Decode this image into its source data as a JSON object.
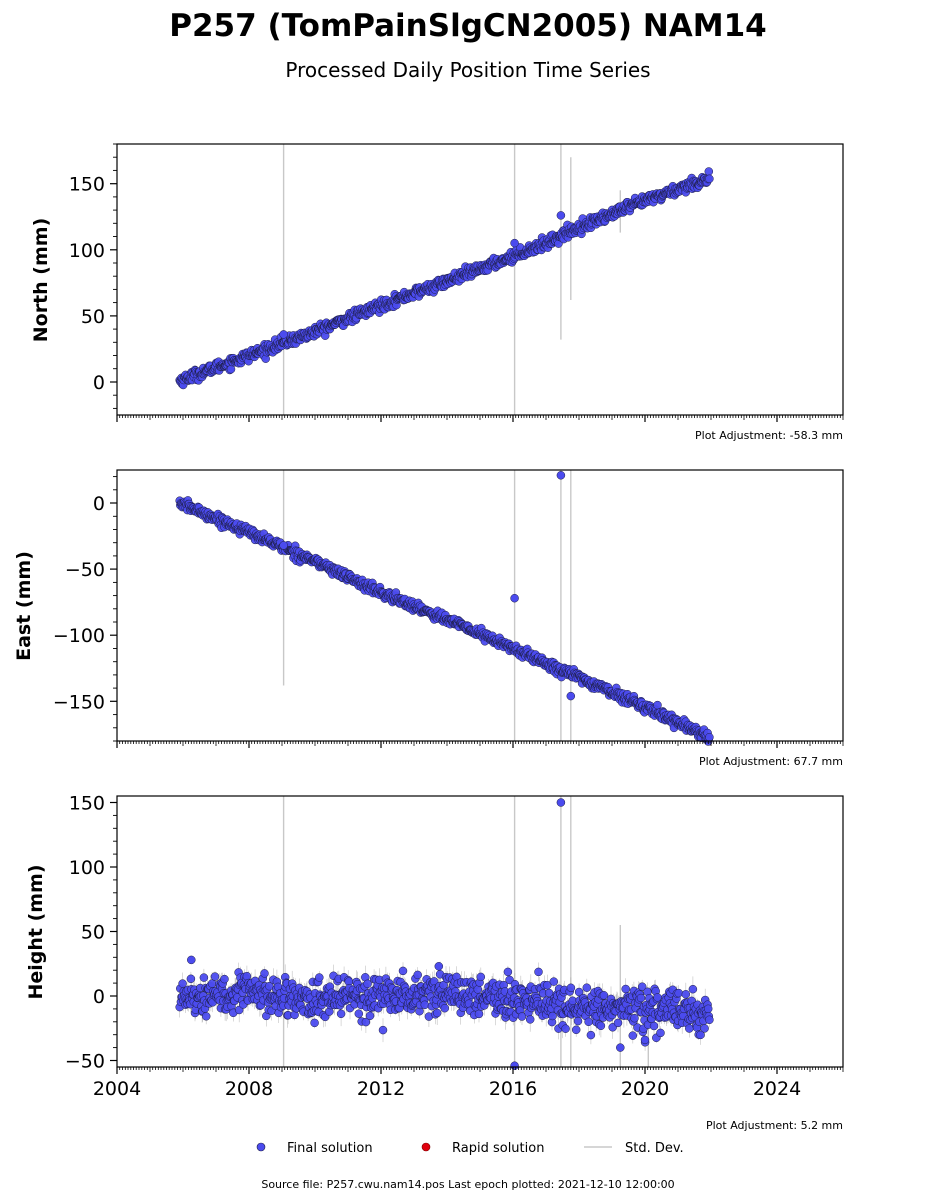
{
  "header": {
    "title": "P257 (TomPainSlgCN2005) NAM14",
    "subtitle": "Processed Daily Position Time Series"
  },
  "footer": {
    "source": "Source file: P257.cwu.nam14.pos  Last epoch plotted: 2021-12-10 12:00:00"
  },
  "legend": {
    "final": "Final solution",
    "rapid": "Rapid solution",
    "stddev": "Std. Dev."
  },
  "colors": {
    "final": "#4b4bee",
    "final_edge": "#1c1c40",
    "rapid": "#e0000e",
    "stddev": "#c8c8c8",
    "axis": "#000000"
  },
  "chart_data": [
    {
      "type": "scatter",
      "panel": "north",
      "ylabel": "North (mm)",
      "adjustment": "Plot Adjustment: -58.3 mm",
      "xlim": [
        2004.0,
        2026.0
      ],
      "ylim": [
        -25,
        180
      ],
      "yticks": [
        0,
        50,
        100,
        150
      ],
      "xticks": [
        2004,
        2008,
        2012,
        2016,
        2020,
        2024
      ],
      "show_xtick_labels": false,
      "trend": [
        [
          2005.9,
          1
        ],
        [
          2008.0,
          20
        ],
        [
          2010.0,
          38
        ],
        [
          2012.0,
          58
        ],
        [
          2014.0,
          76
        ],
        [
          2016.0,
          95
        ],
        [
          2017.0,
          105
        ],
        [
          2018.0,
          117
        ],
        [
          2019.0,
          127
        ],
        [
          2020.0,
          137
        ],
        [
          2021.0,
          146
        ],
        [
          2021.95,
          154
        ]
      ],
      "noise": 2.0,
      "outliers": [
        [
          2009.05,
          36
        ],
        [
          2016.05,
          105
        ],
        [
          2017.45,
          126
        ]
      ],
      "stddev_bars": [
        [
          2009.05,
          -25,
          180
        ],
        [
          2016.05,
          -25,
          180
        ],
        [
          2017.45,
          32,
          180
        ],
        [
          2017.75,
          62,
          170
        ],
        [
          2019.25,
          113,
          145
        ]
      ]
    },
    {
      "type": "scatter",
      "panel": "east",
      "ylabel": "East (mm)",
      "adjustment": "Plot Adjustment: 67.7 mm",
      "xlim": [
        2004.0,
        2026.0
      ],
      "ylim": [
        -180,
        25
      ],
      "yticks": [
        -150,
        -100,
        -50,
        0
      ],
      "xticks": [
        2004,
        2008,
        2012,
        2016,
        2020,
        2024
      ],
      "show_xtick_labels": false,
      "trend": [
        [
          2005.9,
          0
        ],
        [
          2008.0,
          -22
        ],
        [
          2010.0,
          -44
        ],
        [
          2012.0,
          -68
        ],
        [
          2014.0,
          -88
        ],
        [
          2016.0,
          -110
        ],
        [
          2018.0,
          -132
        ],
        [
          2020.0,
          -154
        ],
        [
          2021.95,
          -177
        ]
      ],
      "noise": 1.8,
      "outliers": [
        [
          2009.05,
          -32
        ],
        [
          2016.05,
          -72
        ],
        [
          2017.45,
          21
        ],
        [
          2017.75,
          -146
        ]
      ],
      "stddev_bars": [
        [
          2009.05,
          -138,
          25
        ],
        [
          2016.05,
          -180,
          25
        ],
        [
          2017.45,
          -180,
          25
        ],
        [
          2017.75,
          -180,
          25
        ]
      ]
    },
    {
      "type": "scatter",
      "panel": "height",
      "ylabel": "Height (mm)",
      "adjustment": "Plot Adjustment: 5.2 mm",
      "xlim": [
        2004.0,
        2026.0
      ],
      "ylim": [
        -55,
        155
      ],
      "yticks": [
        -50,
        0,
        50,
        100,
        150
      ],
      "xticks": [
        2004,
        2008,
        2012,
        2016,
        2020,
        2024
      ],
      "xticklabels": [
        "2004",
        "2008",
        "2012",
        "2016",
        "2020",
        "2024"
      ],
      "show_xtick_labels": true,
      "trend": [
        [
          2005.9,
          0
        ],
        [
          2008.0,
          2
        ],
        [
          2010.0,
          -2
        ],
        [
          2012.0,
          0
        ],
        [
          2014.0,
          2
        ],
        [
          2016.0,
          -3
        ],
        [
          2018.0,
          -10
        ],
        [
          2020.0,
          -10
        ],
        [
          2021.95,
          -14
        ]
      ],
      "noise": 7.5,
      "outliers": [
        [
          2006.25,
          28
        ],
        [
          2013.75,
          23
        ],
        [
          2016.05,
          -54
        ],
        [
          2017.45,
          150
        ],
        [
          2019.25,
          -40
        ],
        [
          2020.0,
          -34
        ]
      ],
      "stddev_bars": [
        [
          2009.05,
          -55,
          155
        ],
        [
          2016.05,
          -55,
          155
        ],
        [
          2017.45,
          -55,
          155
        ],
        [
          2017.75,
          -55,
          155
        ],
        [
          2019.25,
          -55,
          55
        ],
        [
          2020.1,
          -55,
          -20
        ]
      ]
    }
  ]
}
